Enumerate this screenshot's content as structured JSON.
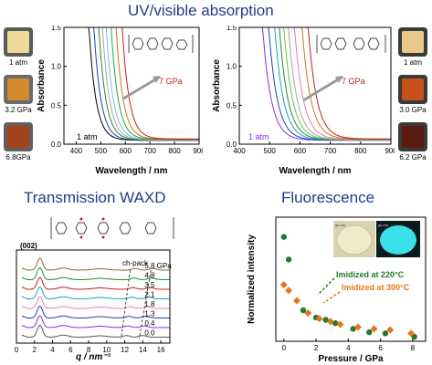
{
  "titles": {
    "uv": "UV/visible absorption",
    "waxd": "Transmission WAXD",
    "fluor": "Fluorescence"
  },
  "photos_left": [
    "1 atm",
    "3.2 GPa",
    "6.8GPa"
  ],
  "photos_right": [
    "1 atm",
    "3.0 GPa",
    "6.2 GPa"
  ],
  "photo_colors": {
    "left": [
      "#efd99a",
      "#d38a2a",
      "#a3431b"
    ],
    "right": [
      "#e8c98a",
      "#c8501a",
      "#5a1c0e"
    ]
  },
  "fluor_photo_labels": [
    "gk-ekt",
    "gk-ekt"
  ],
  "chart_data": [
    {
      "id": "uv_left",
      "type": "line",
      "xlabel": "Wavelength / nm",
      "ylabel": "Absorbance",
      "xlim": [
        350,
        900
      ],
      "ylim": [
        0,
        1.5
      ],
      "xticks": [
        400,
        500,
        600,
        700,
        800,
        900
      ],
      "yticks": [
        0.0,
        0.5,
        1.0,
        1.5
      ],
      "annotations": [
        "7 GPa",
        "1 atm"
      ],
      "colors": [
        "#000000",
        "#1e3fb5",
        "#1f8c2e",
        "#a6a6a6",
        "#7ab8e0",
        "#1fa54a",
        "#c87a10",
        "#c61d1d"
      ],
      "edges": [
        450,
        470,
        490,
        505,
        520,
        540,
        560,
        585
      ]
    },
    {
      "id": "uv_right",
      "type": "line",
      "xlabel": "Wavelength / nm",
      "ylabel": "Absorbance",
      "xlim": [
        400,
        900
      ],
      "ylim": [
        0,
        1.5
      ],
      "xticks": [
        400,
        500,
        600,
        700,
        800,
        900
      ],
      "yticks": [
        0.0,
        0.5,
        1.0,
        1.5
      ],
      "annotations": [
        "7 GPa",
        "1 atm"
      ],
      "colors": [
        "#8a2be2",
        "#1e3fb5",
        "#1aa3c6",
        "#1f8c2e",
        "#63c54a",
        "#a6a6a6",
        "#f07ac0",
        "#c87a10",
        "#c61d1d"
      ],
      "edges": [
        475,
        495,
        515,
        530,
        545,
        560,
        580,
        605,
        625
      ]
    },
    {
      "id": "waxd",
      "type": "line",
      "xlabel": "q / nm⁻¹",
      "xlim": [
        0,
        17
      ],
      "xticks": [
        0,
        2,
        4,
        6,
        8,
        10,
        12,
        14,
        16
      ],
      "annotations": [
        "(002)",
        "ch-pack"
      ],
      "series": [
        {
          "name": "5.8 GPa",
          "color": "#8a6e28"
        },
        {
          "name": "4.8",
          "color": "#1f8c2e"
        },
        {
          "name": "3.5",
          "color": "#c61d1d"
        },
        {
          "name": "2.1",
          "color": "#1aa3c6"
        },
        {
          "name": "1.8",
          "color": "#f07ac0"
        },
        {
          "name": "1.3",
          "color": "#1e3fb5"
        },
        {
          "name": "0.4",
          "color": "#8a2be2"
        },
        {
          "name": "0.0",
          "color": "#555555"
        }
      ]
    },
    {
      "id": "fluorescence",
      "type": "scatter",
      "xlabel": "Pressure / GPa",
      "ylabel": "Normalized intensity",
      "xlim": [
        -0.5,
        8.8
      ],
      "ylim": [
        0,
        2.2
      ],
      "xticks": [
        0,
        2,
        4,
        6,
        8
      ],
      "series": [
        {
          "name": "Imidized at 220°C",
          "color": "#1f7a2e",
          "marker": "circle",
          "x": [
            0.0,
            0.3,
            1.2,
            2.0,
            2.6,
            3.2,
            4.3,
            5.3,
            6.3,
            8.1
          ],
          "y": [
            1.85,
            1.45,
            0.55,
            0.42,
            0.38,
            0.32,
            0.22,
            0.16,
            0.14,
            0.08
          ]
        },
        {
          "name": "Imidized at 300°C",
          "color": "#e8751a",
          "marker": "diamond",
          "x": [
            0.0,
            0.3,
            0.8,
            1.5,
            2.2,
            2.9,
            3.5,
            4.6,
            5.6,
            6.6,
            7.9
          ],
          "y": [
            1.0,
            0.9,
            0.72,
            0.5,
            0.4,
            0.35,
            0.3,
            0.25,
            0.22,
            0.2,
            0.14
          ]
        }
      ]
    }
  ]
}
